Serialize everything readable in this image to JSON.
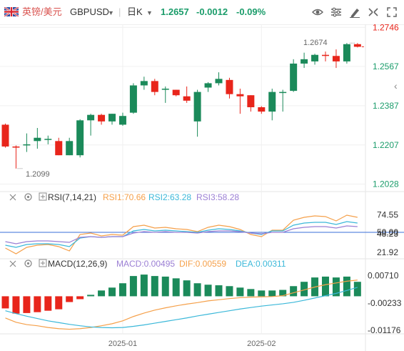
{
  "header": {
    "symbol_cn": "英镑/美元",
    "symbol": "GBPUSD",
    "timeframe": "日K",
    "price": "1.2657",
    "change": "-0.0012",
    "change_pct": "-0.09%",
    "colors": {
      "symbol": "#d9534f",
      "price": "#1a9c6a",
      "change": "#1a9c6a"
    },
    "toolbar_icons": [
      "eye-icon",
      "settings-icon",
      "draw-icon",
      "share-icon",
      "fullscreen-icon"
    ]
  },
  "indicators": {
    "rsi": {
      "name": "RSI(7,14,21)",
      "rsi1": "RSI1:70.66",
      "rsi2": "RSI2:63.28",
      "rsi3": "RSI3:58.28"
    },
    "macd": {
      "name": "MACD(12,26,9)",
      "macd": "MACD:0.00495",
      "dif": "DIF:0.00559",
      "dea": "DEA:0.00311"
    }
  },
  "chart_data": [
    {
      "type": "candlestick",
      "title": "英镑/美元 GBPUSD 日K",
      "y_ticks": [
        "1.2746",
        "1.2567",
        "1.2387",
        "1.2207",
        "1.2028"
      ],
      "x_ticks": [
        "2025-01",
        "2025-02"
      ],
      "ylim": [
        1.2,
        1.276
      ],
      "annotations": {
        "high": "1.2674",
        "low": "1.2099"
      },
      "colors": {
        "up": "#1b8a5a",
        "down": "#e8251b"
      },
      "candles": [
        {
          "o": 1.23,
          "h": 1.2305,
          "l": 1.2195,
          "c": 1.22
        },
        {
          "o": 1.22,
          "h": 1.2205,
          "l": 1.2099,
          "c": 1.2195
        },
        {
          "o": 1.2205,
          "h": 1.226,
          "l": 1.2175,
          "c": 1.221
        },
        {
          "o": 1.2225,
          "h": 1.2285,
          "l": 1.219,
          "c": 1.224
        },
        {
          "o": 1.2235,
          "h": 1.225,
          "l": 1.221,
          "c": 1.2235
        },
        {
          "o": 1.2225,
          "h": 1.224,
          "l": 1.216,
          "c": 1.216
        },
        {
          "o": 1.216,
          "h": 1.224,
          "l": 1.216,
          "c": 1.2225
        },
        {
          "o": 1.216,
          "h": 1.2325,
          "l": 1.215,
          "c": 1.232
        },
        {
          "o": 1.232,
          "h": 1.235,
          "l": 1.225,
          "c": 1.2345
        },
        {
          "o": 1.2345,
          "h": 1.235,
          "l": 1.23,
          "c": 1.2315
        },
        {
          "o": 1.2315,
          "h": 1.235,
          "l": 1.23,
          "c": 1.235
        },
        {
          "o": 1.23,
          "h": 1.2355,
          "l": 1.2295,
          "c": 1.234
        },
        {
          "o": 1.2355,
          "h": 1.249,
          "l": 1.235,
          "c": 1.248
        },
        {
          "o": 1.248,
          "h": 1.252,
          "l": 1.246,
          "c": 1.25
        },
        {
          "o": 1.25,
          "h": 1.251,
          "l": 1.2435,
          "c": 1.245
        },
        {
          "o": 1.246,
          "h": 1.2475,
          "l": 1.24,
          "c": 1.2465
        },
        {
          "o": 1.246,
          "h": 1.246,
          "l": 1.243,
          "c": 1.2435
        },
        {
          "o": 1.243,
          "h": 1.2475,
          "l": 1.24,
          "c": 1.241
        },
        {
          "o": 1.2315,
          "h": 1.246,
          "l": 1.2245,
          "c": 1.245
        },
        {
          "o": 1.247,
          "h": 1.2495,
          "l": 1.245,
          "c": 1.249
        },
        {
          "o": 1.249,
          "h": 1.254,
          "l": 1.248,
          "c": 1.251
        },
        {
          "o": 1.2505,
          "h": 1.2515,
          "l": 1.242,
          "c": 1.244
        },
        {
          "o": 1.244,
          "h": 1.2465,
          "l": 1.235,
          "c": 1.243
        },
        {
          "o": 1.2435,
          "h": 1.2435,
          "l": 1.236,
          "c": 1.238
        },
        {
          "o": 1.238,
          "h": 1.2385,
          "l": 1.235,
          "c": 1.236
        },
        {
          "o": 1.236,
          "h": 1.2465,
          "l": 1.232,
          "c": 1.245
        },
        {
          "o": 1.245,
          "h": 1.246,
          "l": 1.236,
          "c": 1.245
        },
        {
          "o": 1.2455,
          "h": 1.26,
          "l": 1.245,
          "c": 1.258
        },
        {
          "o": 1.258,
          "h": 1.263,
          "l": 1.256,
          "c": 1.26
        },
        {
          "o": 1.259,
          "h": 1.2625,
          "l": 1.2575,
          "c": 1.262
        },
        {
          "o": 1.262,
          "h": 1.2635,
          "l": 1.259,
          "c": 1.2615
        },
        {
          "o": 1.2615,
          "h": 1.2645,
          "l": 1.256,
          "c": 1.259
        },
        {
          "o": 1.259,
          "h": 1.2674,
          "l": 1.258,
          "c": 1.2669
        },
        {
          "o": 1.2669,
          "h": 1.2674,
          "l": 1.2654,
          "c": 1.2657
        }
      ]
    },
    {
      "type": "line",
      "title": "RSI(7,14,21)",
      "y_ticks": [
        "74.55",
        "50.00",
        "48.23",
        "21.92"
      ],
      "ylim": [
        15,
        93
      ],
      "series": [
        {
          "name": "RSI1",
          "color": "#f5a04a",
          "values": [
            28,
            20,
            29,
            32,
            33,
            30,
            24,
            47,
            49,
            45,
            47,
            46,
            58,
            60,
            56,
            57,
            55,
            54,
            51,
            57,
            60,
            58,
            54,
            47,
            44,
            53,
            53,
            67,
            71,
            73,
            72,
            66,
            74,
            71
          ]
        },
        {
          "name": "RSI2",
          "color": "#3bb8d9",
          "values": [
            32,
            29,
            33,
            34,
            34,
            33,
            30,
            42,
            44,
            43,
            44,
            44,
            52,
            54,
            52,
            53,
            52,
            51,
            50,
            53,
            55,
            54,
            52,
            49,
            47,
            52,
            52,
            60,
            63,
            64,
            64,
            61,
            65,
            63
          ]
        },
        {
          "name": "RSI3",
          "color": "#9b7fd4",
          "values": [
            37,
            34,
            37,
            38,
            38,
            37,
            36,
            43,
            44,
            43,
            44,
            44,
            49,
            51,
            50,
            51,
            50,
            50,
            49,
            51,
            52,
            52,
            51,
            49,
            48,
            50,
            50,
            55,
            57,
            58,
            58,
            56,
            59,
            58
          ]
        }
      ]
    },
    {
      "type": "bar",
      "title": "MACD(12,26,9)",
      "y_ticks": [
        "0.00710",
        "-0.00233",
        "-0.01176"
      ],
      "ylim": [
        -0.0125,
        0.0095
      ],
      "colors": {
        "positive": "#1b8a5a",
        "negative": "#e8251b"
      },
      "values": [
        -0.0042,
        -0.006,
        -0.0058,
        -0.0055,
        -0.005,
        -0.0045,
        -0.002,
        -0.001,
        0.0005,
        0.002,
        0.003,
        0.0045,
        0.007,
        0.0075,
        0.007,
        0.0068,
        0.0062,
        0.0055,
        0.0045,
        0.004,
        0.0038,
        0.0035,
        0.003,
        0.0025,
        0.002,
        0.002,
        0.0022,
        0.0035,
        0.005,
        0.0065,
        0.0068,
        0.0065,
        0.0068,
        0.005
      ],
      "series": [
        {
          "name": "DIF",
          "color": "#f5a04a",
          "values": [
            -0.0075,
            -0.009,
            -0.0098,
            -0.0102,
            -0.0108,
            -0.0112,
            -0.0114,
            -0.0112,
            -0.0108,
            -0.0102,
            -0.0095,
            -0.0085,
            -0.007,
            -0.0058,
            -0.0048,
            -0.004,
            -0.0033,
            -0.0027,
            -0.0022,
            -0.0016,
            -0.0012,
            -0.0008,
            -0.0005,
            -0.0003,
            -0.0002,
            -0.0001,
            0.0002,
            0.0012,
            0.0022,
            0.0032,
            0.004,
            0.0046,
            0.0052,
            0.0056
          ]
        },
        {
          "name": "DEA",
          "color": "#3bb8d9",
          "values": [
            -0.005,
            -0.006,
            -0.0069,
            -0.0077,
            -0.0085,
            -0.0091,
            -0.0097,
            -0.0102,
            -0.0106,
            -0.0108,
            -0.0109,
            -0.0108,
            -0.0104,
            -0.0099,
            -0.0093,
            -0.0087,
            -0.0081,
            -0.0075,
            -0.0068,
            -0.0062,
            -0.0056,
            -0.005,
            -0.0044,
            -0.0039,
            -0.0034,
            -0.003,
            -0.0026,
            -0.0021,
            -0.0014,
            -0.0006,
            0.0002,
            0.001,
            0.002,
            0.0031
          ]
        }
      ]
    }
  ]
}
